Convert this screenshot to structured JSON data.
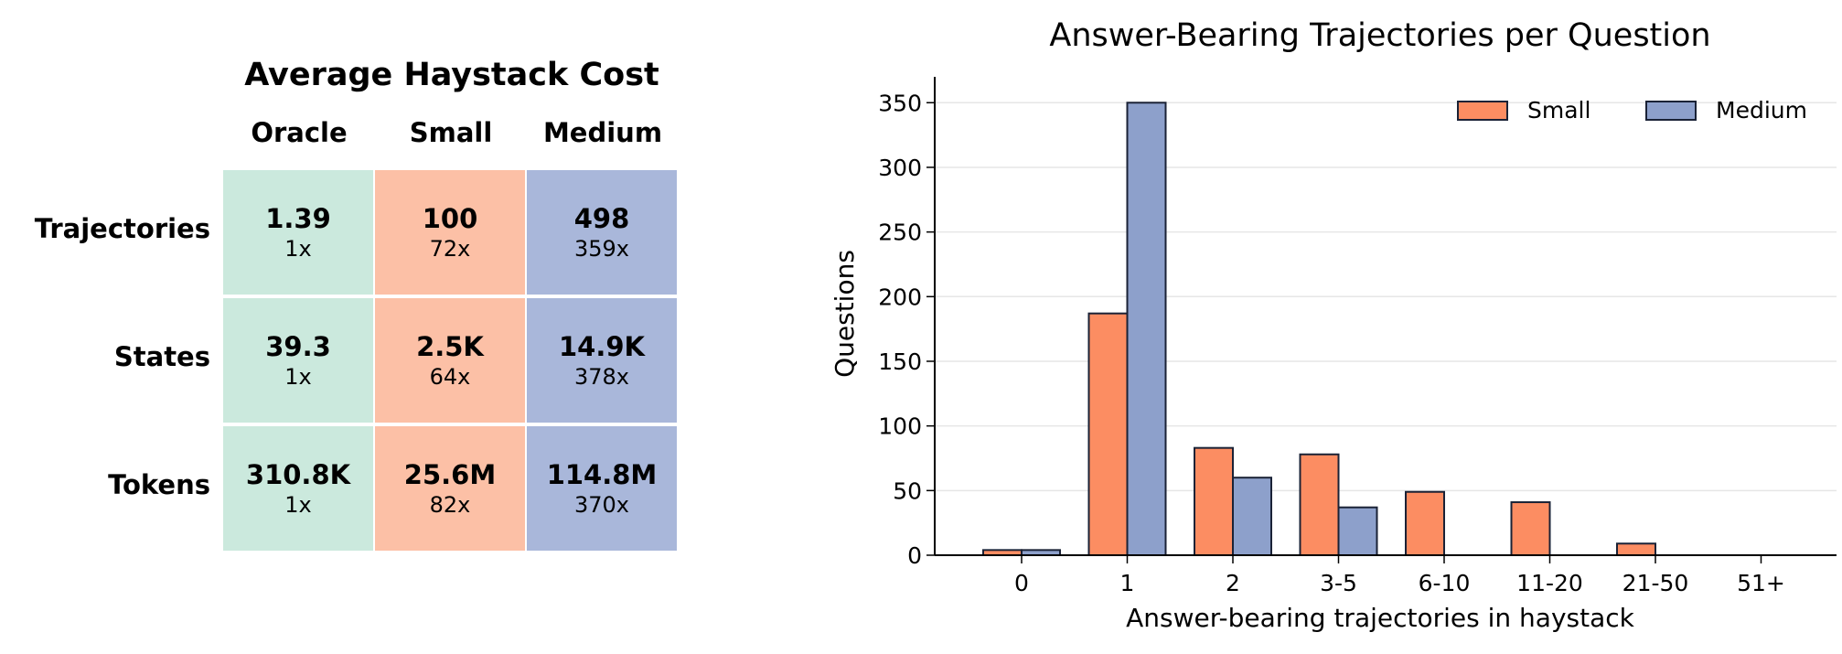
{
  "table": {
    "title": "Average Haystack Cost",
    "columns": [
      "Oracle",
      "Small",
      "Medium"
    ],
    "column_colors": [
      "#cbe9dd",
      "#fcc0a6",
      "#a9b7da"
    ],
    "rows": [
      {
        "label": "Trajectories",
        "cells": [
          {
            "value": "1.39",
            "mult": "1x"
          },
          {
            "value": "100",
            "mult": "72x"
          },
          {
            "value": "498",
            "mult": "359x"
          }
        ]
      },
      {
        "label": "States",
        "cells": [
          {
            "value": "39.3",
            "mult": "1x"
          },
          {
            "value": "2.5K",
            "mult": "64x"
          },
          {
            "value": "14.9K",
            "mult": "378x"
          }
        ]
      },
      {
        "label": "Tokens",
        "cells": [
          {
            "value": "310.8K",
            "mult": "1x"
          },
          {
            "value": "25.6M",
            "mult": "82x"
          },
          {
            "value": "114.8M",
            "mult": "370x"
          }
        ]
      }
    ]
  },
  "chart_data": {
    "type": "bar",
    "title": "Answer-Bearing Trajectories per Question",
    "xlabel": "Answer-bearing trajectories in haystack",
    "ylabel": "Questions",
    "categories": [
      "0",
      "1",
      "2",
      "3-5",
      "6-10",
      "11-20",
      "21-50",
      "51+"
    ],
    "series": [
      {
        "name": "Small",
        "color": "#fc8d62",
        "values": [
          4,
          187,
          83,
          78,
          49,
          41,
          9,
          0
        ]
      },
      {
        "name": "Medium",
        "color": "#8da0cb",
        "values": [
          4,
          350,
          60,
          37,
          0,
          0,
          0,
          0
        ]
      }
    ],
    "ylim": [
      0,
      370
    ],
    "yticks": [
      0,
      50,
      100,
      150,
      200,
      250,
      300,
      350
    ],
    "grid": "horizontal",
    "legend": "top-right"
  }
}
